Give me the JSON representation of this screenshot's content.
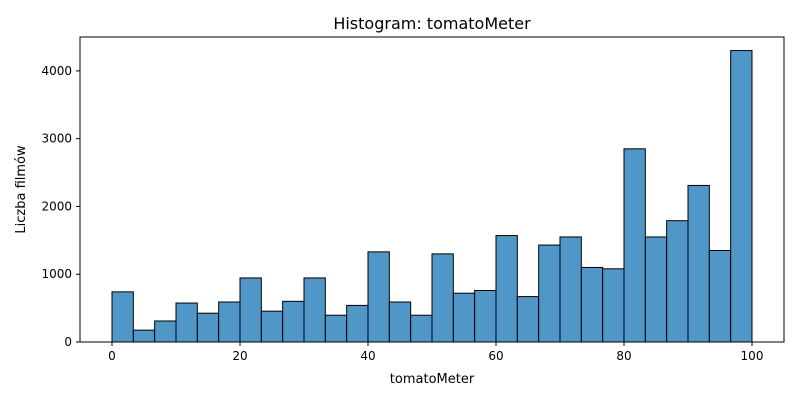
{
  "chart_data": {
    "type": "bar",
    "title": "Histogram: tomatoMeter",
    "xlabel": "tomatoMeter",
    "ylabel": "Liczba filmów",
    "xlim": [
      -5,
      105
    ],
    "ylim": [
      0,
      4500
    ],
    "xticks": [
      0,
      20,
      40,
      60,
      80,
      100
    ],
    "yticks": [
      0,
      1000,
      2000,
      3000,
      4000
    ],
    "grid": false,
    "legend": "none",
    "bar_color": "#5097c8",
    "edge_color": "#000000",
    "bin_width": 3.3333,
    "bin_start": 0,
    "values": [
      740,
      175,
      310,
      575,
      425,
      590,
      945,
      455,
      600,
      945,
      395,
      540,
      1330,
      590,
      395,
      1300,
      720,
      760,
      1570,
      670,
      1430,
      1550,
      1100,
      1080,
      2850,
      1550,
      1790,
      2310,
      1350,
      4300
    ]
  }
}
